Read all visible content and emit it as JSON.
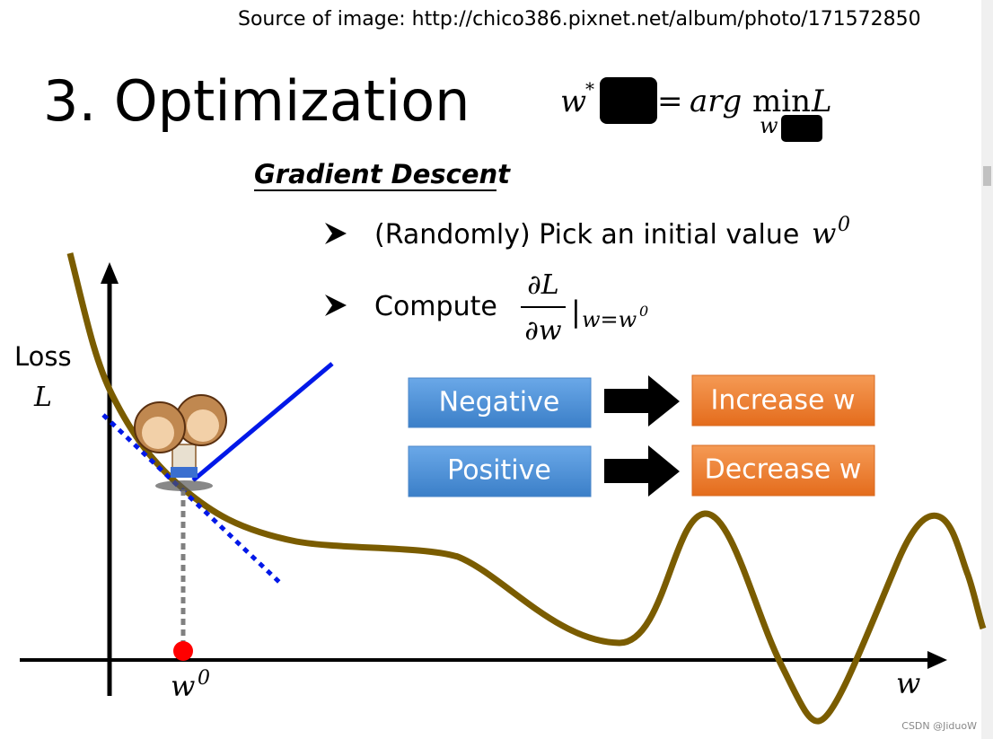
{
  "source": "Source of image: http://chico386.pixnet.net/album/photo/171572850",
  "title": "3. Optimization",
  "formula": {
    "lhs": "w",
    "lhs_sup": "*",
    "eq": "=",
    "rhs": "arg",
    "op": "min",
    "op_sub": "w",
    "var": "L"
  },
  "subtitle": "Gradient Descent",
  "bullets": [
    {
      "text": "(Randomly) Pick an initial value",
      "math": "w",
      "sup": "0"
    },
    {
      "text": "Compute",
      "num": "∂L",
      "den": "∂w",
      "eval": "|",
      "eval_sub": "w=w",
      "eval_sup": "0"
    }
  ],
  "axis": {
    "y_label": "Loss",
    "y_var": "L",
    "x_point": "w",
    "x_point_sup": "0",
    "x_var": "w"
  },
  "rules": [
    {
      "condition": "Negative",
      "action": "Increase w"
    },
    {
      "condition": "Positive",
      "action": "Decrease w"
    }
  ],
  "watermark": "CSDN @JiduoW"
}
